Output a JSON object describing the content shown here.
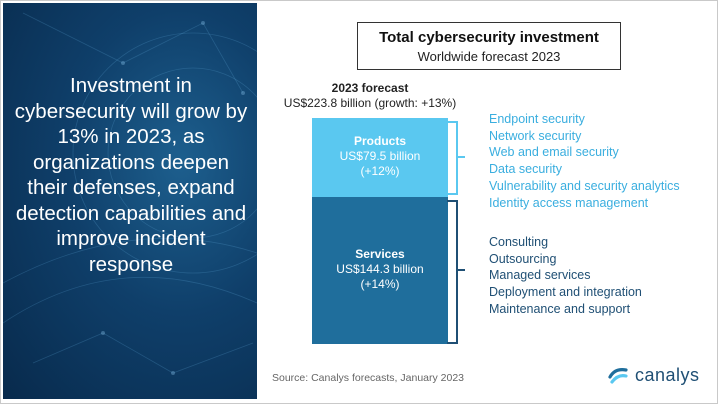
{
  "headline": "Investment in cybersecurity will grow by 13% in 2023, as organizations deepen their defenses, expand detection capabilities and improve incident response",
  "chart_data": {
    "type": "bar",
    "title": "Total cybersecurity investment",
    "subtitle": "Worldwide forecast 2023",
    "total": {
      "label": "2023 forecast",
      "value_text": "US$223.8 billion (growth: +13%)",
      "value": 223.8,
      "growth_pct": 13
    },
    "series": [
      {
        "name": "Products",
        "value": 79.5,
        "value_text": "US$79.5 billion",
        "growth_text": "(+12%)",
        "growth_pct": 12,
        "color": "#5ac8f0",
        "segments": [
          "Endpoint security",
          "Network security",
          "Web and email security",
          "Data security",
          "Vulnerability and security analytics",
          "Identity access management"
        ]
      },
      {
        "name": "Services",
        "value": 144.3,
        "value_text": "US$144.3 billion",
        "growth_text": "(+14%)",
        "growth_pct": 14,
        "color": "#1f6e9c",
        "segments": [
          "Consulting",
          "Outsourcing",
          "Managed services",
          "Deployment and integration",
          "Maintenance and support"
        ]
      }
    ]
  },
  "source": "Source: Canalys forecasts, January 2023",
  "logo_text": "canalys",
  "colors": {
    "panel_dark": "#0b3358",
    "products": "#5ac8f0",
    "services": "#1f6e9c",
    "services_text": "#1f4f74"
  }
}
